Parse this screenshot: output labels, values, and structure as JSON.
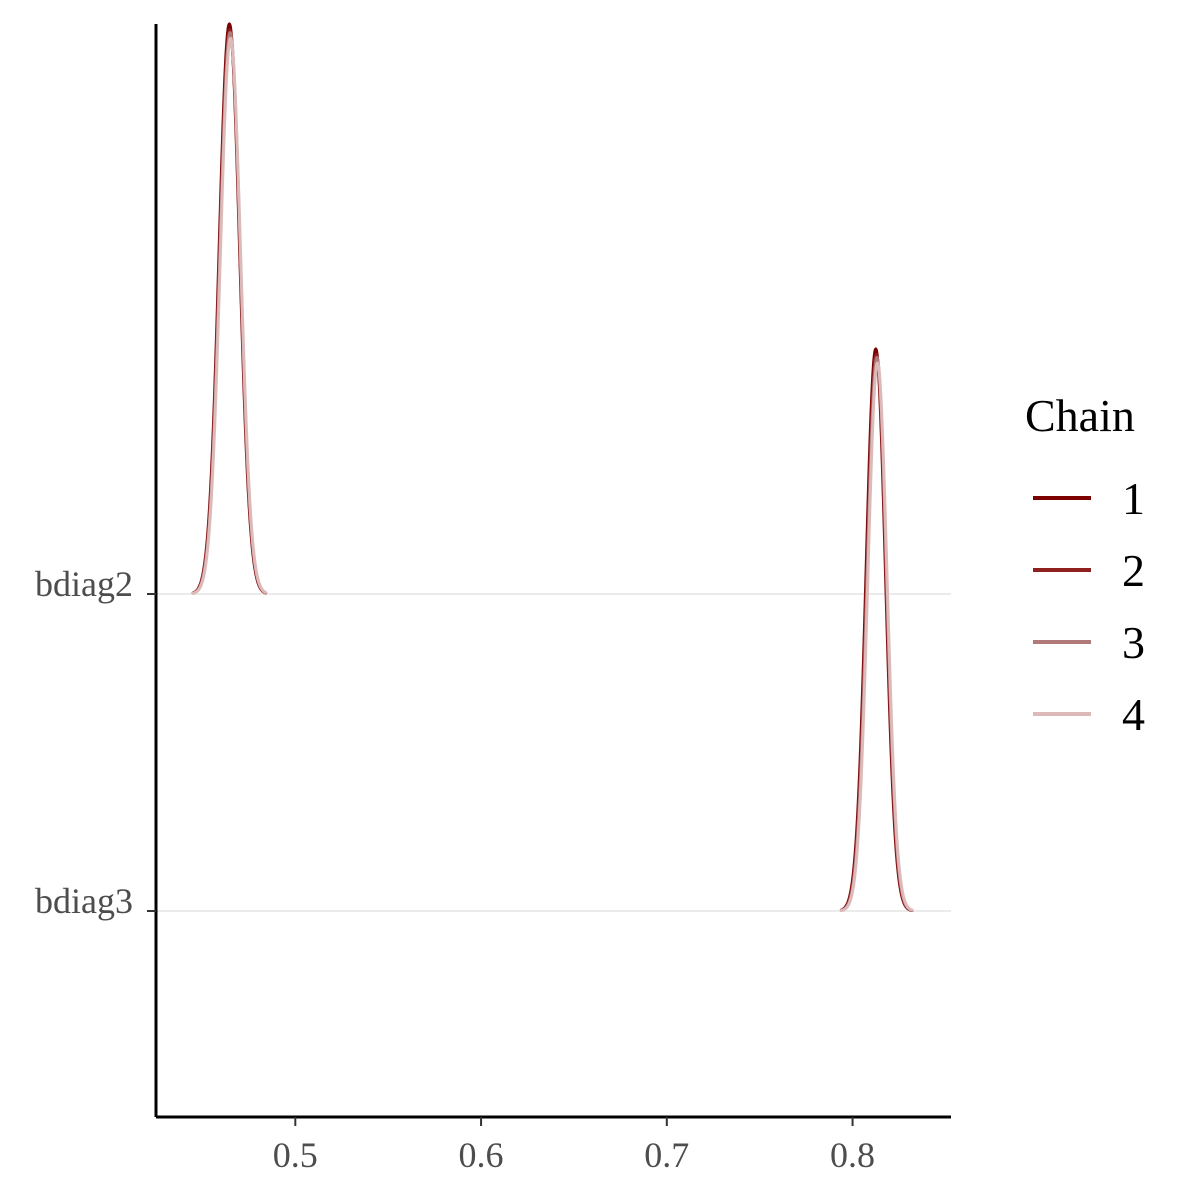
{
  "chart_data": {
    "type": "ridgeline-density",
    "xlim": [
      0.425,
      0.853
    ],
    "x_ticks": [
      0.5,
      0.6,
      0.7,
      0.8
    ],
    "x_tick_labels": [
      "0.5",
      "0.6",
      "0.7",
      "0.8"
    ],
    "categories": [
      "bdiag2",
      "bdiag3"
    ],
    "grid": "horizontal-at-categories",
    "legend": {
      "title": "Chain",
      "position": "right",
      "entries": [
        "1",
        "2",
        "3",
        "4"
      ]
    },
    "series": [
      {
        "name": "1",
        "color": "#7b0000",
        "scale": 1.0
      },
      {
        "name": "2",
        "color": "#8f2020",
        "scale": 0.99
      },
      {
        "name": "3",
        "color": "#b07a7a",
        "scale": 0.985
      },
      {
        "name": "4",
        "color": "#dcbaba",
        "scale": 0.975
      }
    ],
    "densities": [
      {
        "category": "bdiag2",
        "mode": 0.4645,
        "sd": 0.0055,
        "range": [
          0.445,
          0.484
        ],
        "mode_shift": [
          0.0,
          0.0002,
          0.0004,
          0.0006
        ]
      },
      {
        "category": "bdiag3",
        "mode": 0.8125,
        "sd": 0.0052,
        "range": [
          0.794,
          0.832
        ],
        "mode_shift": [
          0.0,
          0.0003,
          0.0006,
          0.0009
        ]
      }
    ]
  }
}
